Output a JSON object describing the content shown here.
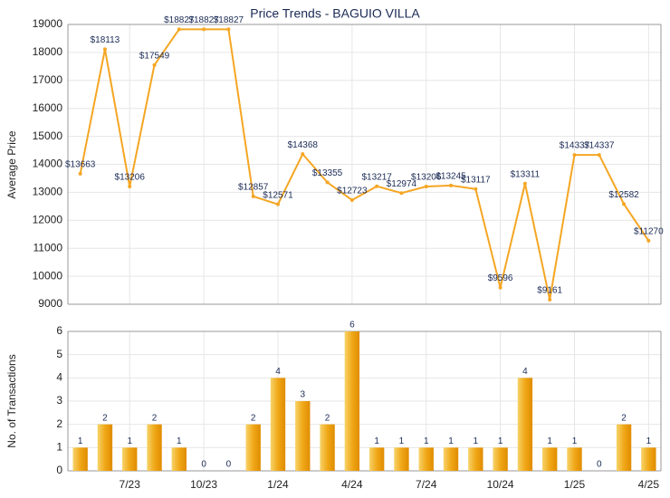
{
  "chart_data": [
    {
      "type": "line",
      "title": "Price Trends - BAGUIO VILLA",
      "ylabel": "Average Price",
      "color": "#f5a623",
      "values": [
        13663,
        18113,
        13206,
        17549,
        18827,
        18827,
        18827,
        12857,
        12571,
        14368,
        13355,
        12723,
        13217,
        12974,
        13206,
        13245,
        13117,
        9596,
        13311,
        9161,
        14337,
        14337,
        12582,
        11270
      ],
      "value_labels": [
        "$13663",
        "$18113",
        "$13206",
        "$17549",
        "$18827",
        "$18827",
        "$18827",
        "$12857",
        "$12571",
        "$14368",
        "$13355",
        "$12723",
        "$13217",
        "$12974",
        "$13206",
        "$13245",
        "$13117",
        "$9596",
        "$13311",
        "$9161",
        "$14337",
        "$14337",
        "$12582",
        "$11270"
      ],
      "ylim": [
        9000,
        19000
      ],
      "yticks": [
        9000,
        10000,
        11000,
        12000,
        13000,
        14000,
        15000,
        16000,
        17000,
        18000,
        19000
      ],
      "grid": true
    },
    {
      "type": "bar",
      "ylabel": "No. of Transactions",
      "color": "#f0a818",
      "categories": [
        null,
        null,
        "7/23",
        null,
        null,
        "10/23",
        null,
        null,
        "1/24",
        null,
        null,
        "4/24",
        null,
        null,
        "7/24",
        null,
        null,
        "10/24",
        null,
        null,
        "1/25",
        null,
        null,
        "4/25"
      ],
      "values": [
        1,
        2,
        1,
        2,
        1,
        0,
        0,
        2,
        4,
        3,
        2,
        6,
        1,
        1,
        1,
        1,
        1,
        1,
        4,
        1,
        1,
        0,
        2,
        1
      ],
      "ylim": [
        0,
        6
      ],
      "yticks": [
        0,
        1,
        2,
        3,
        4,
        5,
        6
      ],
      "grid": true
    }
  ]
}
